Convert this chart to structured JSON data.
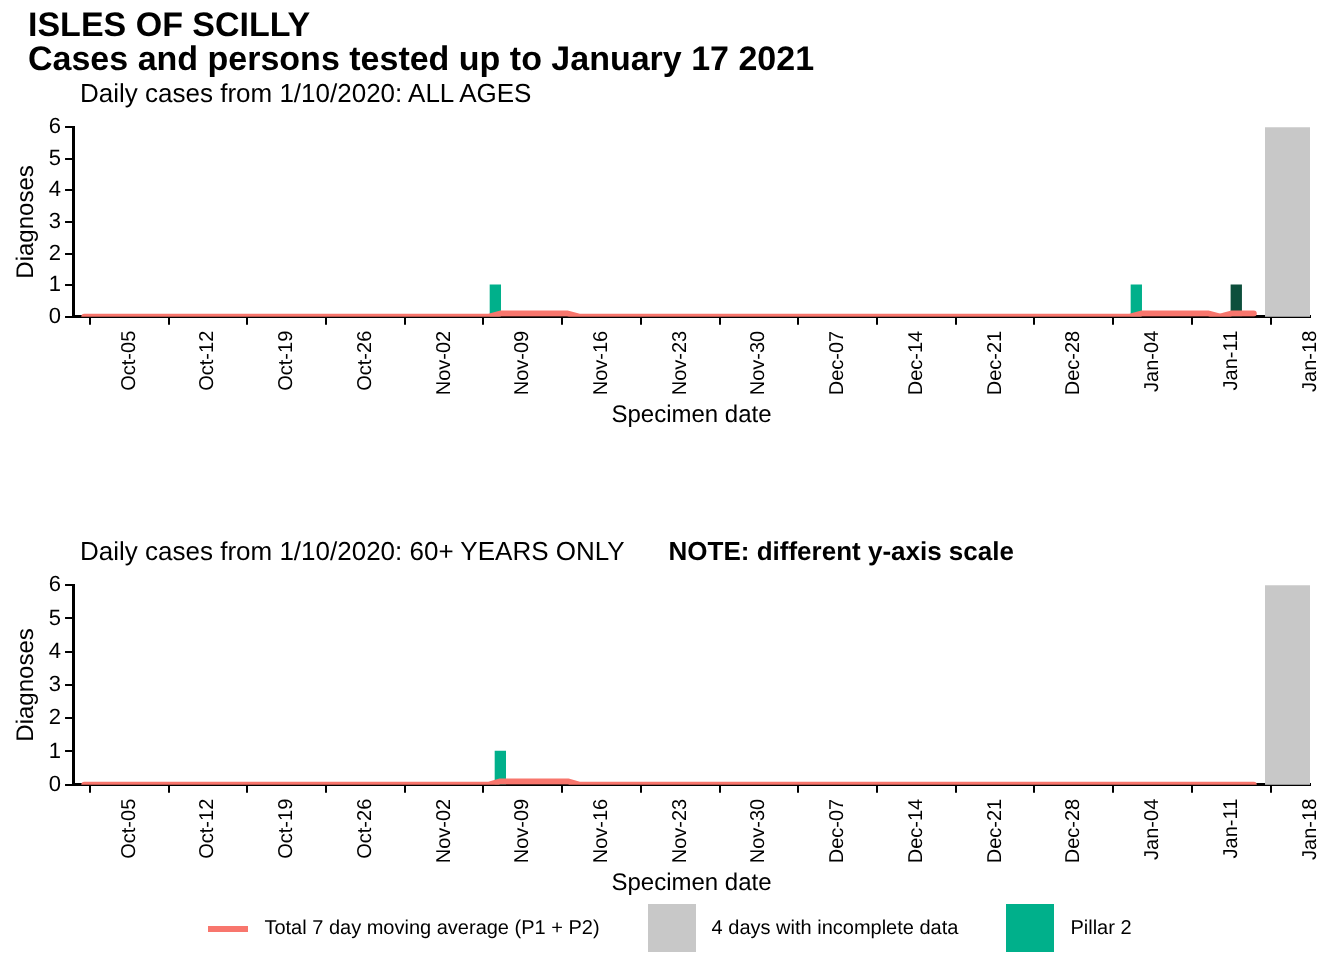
{
  "chart_data": [
    {
      "type": "bar",
      "title": "ISLES OF SCILLY",
      "subtitle": "Cases and persons tested up to January 17 2021",
      "annotations": [
        "Daily cases from 1/10/2020: ALL AGES"
      ],
      "xlabel": "Specimen date",
      "ylabel": "Diagnoses",
      "series": [
        {
          "type": "line",
          "color": "#f8766d",
          "x": [
            "2020-10-01",
            "2020-11-06",
            "2020-11-07",
            "2020-11-13",
            "2020-11-14",
            "2021-01-02",
            "2021-01-03",
            "2021-01-09",
            "2021-01-10",
            "2021-01-11",
            "2021-01-13"
          ],
          "values": [
            0,
            0,
            0.1,
            0.1,
            0,
            0,
            0.1,
            0.1,
            0,
            0.1,
            0.1
          ]
        },
        {
          "color": "#00b08b",
          "x": [
            "2020-11-07",
            "2021-01-03"
          ],
          "values": [
            1,
            1
          ]
        },
        {
          "color": "#0d4f3c",
          "x": [
            "2021-01-11"
          ],
          "values": [
            1
          ]
        }
      ],
      "bands": [
        {
          "axis": "x",
          "from": "2021-01-14",
          "to": "2021-01-18",
          "color": "#c8c8c8"
        }
      ],
      "xlim": [
        "2020-09-30",
        "2021-01-18"
      ],
      "xticks": [
        {
          "value": "2020-10-05",
          "label": "Oct-05"
        },
        {
          "value": "2020-10-12",
          "label": "Oct-12"
        },
        {
          "value": "2020-10-19",
          "label": "Oct-19"
        },
        {
          "value": "2020-10-26",
          "label": "Oct-26"
        },
        {
          "value": "2020-11-02",
          "label": "Nov-02"
        },
        {
          "value": "2020-11-09",
          "label": "Nov-09"
        },
        {
          "value": "2020-11-16",
          "label": "Nov-16"
        },
        {
          "value": "2020-11-23",
          "label": "Nov-23"
        },
        {
          "value": "2020-11-30",
          "label": "Nov-30"
        },
        {
          "value": "2020-12-07",
          "label": "Dec-07"
        },
        {
          "value": "2020-12-14",
          "label": "Dec-14"
        },
        {
          "value": "2020-12-21",
          "label": "Dec-21"
        },
        {
          "value": "2020-12-28",
          "label": "Dec-28"
        },
        {
          "value": "2021-01-04",
          "label": "Jan-04"
        },
        {
          "value": "2021-01-11",
          "label": "Jan-11"
        },
        {
          "value": "2021-01-18",
          "label": "Jan-18"
        }
      ],
      "ylim": [
        0,
        6
      ],
      "yticks": [
        0,
        1,
        2,
        3,
        4,
        5,
        6
      ],
      "grid": false,
      "marker": "none"
    },
    {
      "type": "bar",
      "title": "Daily cases from 1/10/2020: 60+ YEARS ONLY",
      "annotations": [
        "NOTE: different y-axis scale"
      ],
      "xlabel": "Specimen date",
      "ylabel": "Diagnoses",
      "series": [
        {
          "type": "line",
          "name": "Total 7 day moving average (P1 + P2)",
          "color": "#f8766d",
          "x": [
            "2020-10-01",
            "2020-11-06",
            "2020-11-07",
            "2020-11-13",
            "2020-11-14",
            "2021-01-13"
          ],
          "values": [
            0,
            0,
            0.1,
            0.1,
            0,
            0
          ]
        },
        {
          "name": "Pillar 2",
          "color": "#00b08b",
          "x": [
            "2020-11-07"
          ],
          "values": [
            1
          ]
        }
      ],
      "bands": [
        {
          "axis": "x",
          "from": "2021-01-14",
          "to": "2021-01-18",
          "label": "4 days with incomplete data",
          "color": "#c8c8c8"
        }
      ],
      "xlim": [
        "2020-09-30",
        "2021-01-18"
      ],
      "xticks": [
        {
          "value": "2020-10-05",
          "label": "Oct-05"
        },
        {
          "value": "2020-10-12",
          "label": "Oct-12"
        },
        {
          "value": "2020-10-19",
          "label": "Oct-19"
        },
        {
          "value": "2020-10-26",
          "label": "Oct-26"
        },
        {
          "value": "2020-11-02",
          "label": "Nov-02"
        },
        {
          "value": "2020-11-09",
          "label": "Nov-09"
        },
        {
          "value": "2020-11-16",
          "label": "Nov-16"
        },
        {
          "value": "2020-11-23",
          "label": "Nov-23"
        },
        {
          "value": "2020-11-30",
          "label": "Nov-30"
        },
        {
          "value": "2020-12-07",
          "label": "Dec-07"
        },
        {
          "value": "2020-12-14",
          "label": "Dec-14"
        },
        {
          "value": "2020-12-21",
          "label": "Dec-21"
        },
        {
          "value": "2020-12-28",
          "label": "Dec-28"
        },
        {
          "value": "2021-01-04",
          "label": "Jan-04"
        },
        {
          "value": "2021-01-11",
          "label": "Jan-11"
        },
        {
          "value": "2021-01-18",
          "label": "Jan-18"
        }
      ],
      "ylim": [
        0,
        6
      ],
      "yticks": [
        0,
        1,
        2,
        3,
        4,
        5,
        6
      ],
      "grid": false,
      "marker": "none",
      "legend": "bottom"
    }
  ]
}
